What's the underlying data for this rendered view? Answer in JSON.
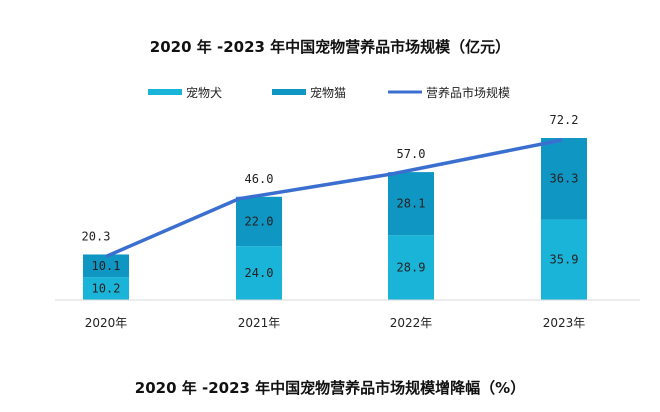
{
  "chart_data": {
    "type": "bar",
    "stacked": true,
    "title": "2020 年 -2023 年中国宠物营养品市场规模（亿元）",
    "categories": [
      "2020年",
      "2021年",
      "2022年",
      "2023年"
    ],
    "series": [
      {
        "name": "宠物犬",
        "type": "bar",
        "color": "#1ab4d8",
        "values": [
          10.2,
          24.0,
          28.9,
          35.9
        ],
        "labels": [
          "10.2",
          "24.0",
          "28.9",
          "35.9"
        ]
      },
      {
        "name": "宠物猫",
        "type": "bar",
        "color": "#1096c2",
        "values": [
          10.1,
          22.0,
          28.1,
          36.3
        ],
        "labels": [
          "10.1",
          "22.0",
          "28.1",
          "36.3"
        ]
      },
      {
        "name": "营养品市场规模",
        "type": "line",
        "color": "#3a6fd0",
        "values": [
          20.3,
          46.0,
          57.0,
          72.2
        ],
        "labels": [
          "20.3",
          "46.0",
          "57.0",
          "72.2"
        ]
      }
    ],
    "legend_position": "top",
    "grid": false,
    "ylim": [
      0,
      72.2
    ]
  },
  "next_title": "2020 年 -2023 年中国宠物营养品市场规模增降幅（%）"
}
